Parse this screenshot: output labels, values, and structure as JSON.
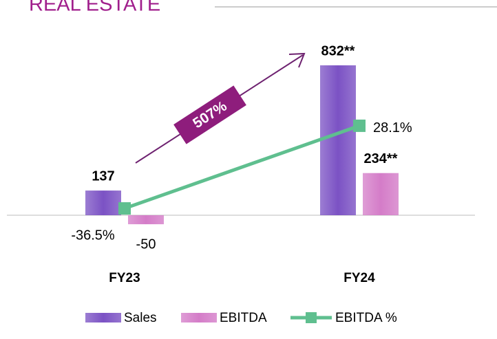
{
  "chart_data": {
    "type": "bar",
    "title": "REAL ESTATE",
    "categories": [
      "FY23",
      "FY24"
    ],
    "ylim": [
      -200,
      1000
    ],
    "y2lim": [
      -70,
      99
    ],
    "annotation": "507%",
    "series": [
      {
        "name": "Sales",
        "type": "bar",
        "color": "#7b52c4",
        "values": [
          137,
          832
        ],
        "value_labels": [
          "137",
          "832**"
        ]
      },
      {
        "name": "EBITDA",
        "type": "bar",
        "color": "#d47cc8",
        "values": [
          -50,
          234
        ],
        "value_labels": [
          "-50",
          "234**"
        ]
      },
      {
        "name": "EBITDA %",
        "type": "line",
        "axis": "y2",
        "color": "#5fbf8f",
        "values": [
          -36.5,
          28.1
        ],
        "value_labels": [
          "-36.5%",
          "28.1%"
        ]
      }
    ],
    "legend": "bottom"
  }
}
